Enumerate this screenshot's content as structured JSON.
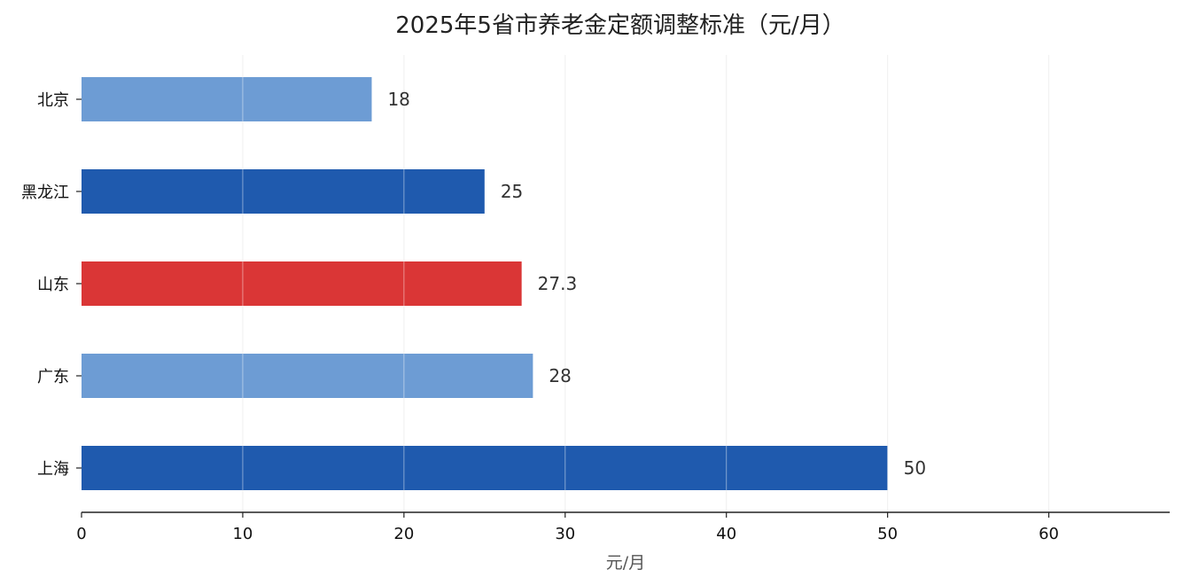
{
  "chart_data": {
    "type": "bar",
    "orientation": "horizontal",
    "title": "2025年5省市养老金定额调整标准（元/月）",
    "xlabel": "元/月",
    "ylabel": "",
    "xlim": [
      0,
      67.5
    ],
    "xticks": [
      0,
      10,
      20,
      30,
      40,
      50,
      60
    ],
    "grid": "vertical",
    "categories": [
      "北京",
      "黑龙江",
      "山东",
      "广东",
      "上海"
    ],
    "values": [
      18,
      25,
      27.3,
      28,
      50
    ],
    "value_labels": [
      "18",
      "25",
      "27.3",
      "28",
      "50"
    ],
    "colors": [
      "#6d9cd4",
      "#1f5aae",
      "#da3636",
      "#6d9cd4",
      "#1f5aae"
    ]
  }
}
